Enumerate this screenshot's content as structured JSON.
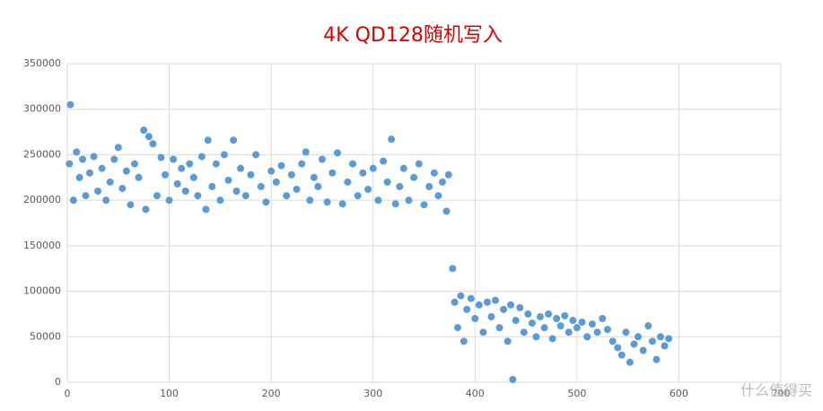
{
  "chart_data": {
    "type": "scatter",
    "title": "4K QD128随机写入",
    "color": "#5b9bd5",
    "x": [
      2,
      3,
      6,
      9,
      12,
      15,
      18,
      22,
      26,
      30,
      34,
      38,
      42,
      46,
      50,
      54,
      58,
      62,
      66,
      70,
      75,
      77,
      80,
      84,
      88,
      92,
      96,
      100,
      104,
      108,
      112,
      116,
      120,
      124,
      128,
      132,
      136,
      138,
      142,
      146,
      150,
      154,
      158,
      163,
      166,
      170,
      175,
      180,
      185,
      190,
      195,
      200,
      205,
      210,
      215,
      220,
      225,
      230,
      234,
      238,
      242,
      246,
      250,
      255,
      260,
      265,
      270,
      275,
      280,
      285,
      290,
      295,
      300,
      305,
      310,
      314,
      318,
      322,
      326,
      330,
      335,
      340,
      345,
      350,
      355,
      360,
      364,
      368,
      372,
      374,
      378,
      380,
      383,
      386,
      389,
      392,
      396,
      400,
      404,
      408,
      412,
      416,
      420,
      424,
      428,
      432,
      435,
      437,
      440,
      444,
      448,
      452,
      456,
      460,
      464,
      468,
      472,
      476,
      480,
      484,
      488,
      492,
      496,
      500,
      505,
      510,
      515,
      520,
      525,
      530,
      535,
      540,
      544,
      548,
      552,
      556,
      560,
      565,
      570,
      574,
      578,
      582,
      586,
      590
    ],
    "values": [
      240000,
      305000,
      200000,
      253000,
      225000,
      245000,
      205000,
      230000,
      248000,
      210000,
      235000,
      200000,
      220000,
      245000,
      258000,
      213000,
      232000,
      195000,
      240000,
      225000,
      277000,
      190000,
      270000,
      262000,
      205000,
      247000,
      228000,
      200000,
      245000,
      218000,
      235000,
      210000,
      240000,
      225000,
      205000,
      248000,
      190000,
      266000,
      215000,
      240000,
      200000,
      250000,
      222000,
      266000,
      210000,
      235000,
      205000,
      228000,
      250000,
      215000,
      198000,
      232000,
      220000,
      238000,
      205000,
      228000,
      212000,
      240000,
      253000,
      200000,
      225000,
      215000,
      245000,
      198000,
      230000,
      252000,
      196000,
      220000,
      240000,
      205000,
      230000,
      212000,
      235000,
      200000,
      243000,
      220000,
      267000,
      196000,
      215000,
      235000,
      200000,
      225000,
      240000,
      195000,
      215000,
      230000,
      205000,
      220000,
      188000,
      228000,
      125000,
      88000,
      60000,
      95000,
      45000,
      80000,
      92000,
      70000,
      85000,
      55000,
      88000,
      72000,
      90000,
      60000,
      80000,
      45000,
      85000,
      3000,
      68000,
      82000,
      55000,
      75000,
      65000,
      50000,
      72000,
      60000,
      75000,
      48000,
      70000,
      62000,
      73000,
      55000,
      68000,
      60000,
      66000,
      50000,
      64000,
      55000,
      70000,
      58000,
      45000,
      38000,
      30000,
      55000,
      22000,
      42000,
      50000,
      35000,
      62000,
      45000,
      25000,
      50000,
      40000,
      48000
    ],
    "xlim": [
      0,
      700
    ],
    "xticks": [
      0,
      100,
      200,
      300,
      400,
      500,
      600,
      700
    ],
    "ylim": [
      0,
      350000
    ],
    "yticks": [
      0,
      50000,
      100000,
      150000,
      200000,
      250000,
      300000,
      350000
    ],
    "grid": true
  },
  "watermark": "什么值得买"
}
